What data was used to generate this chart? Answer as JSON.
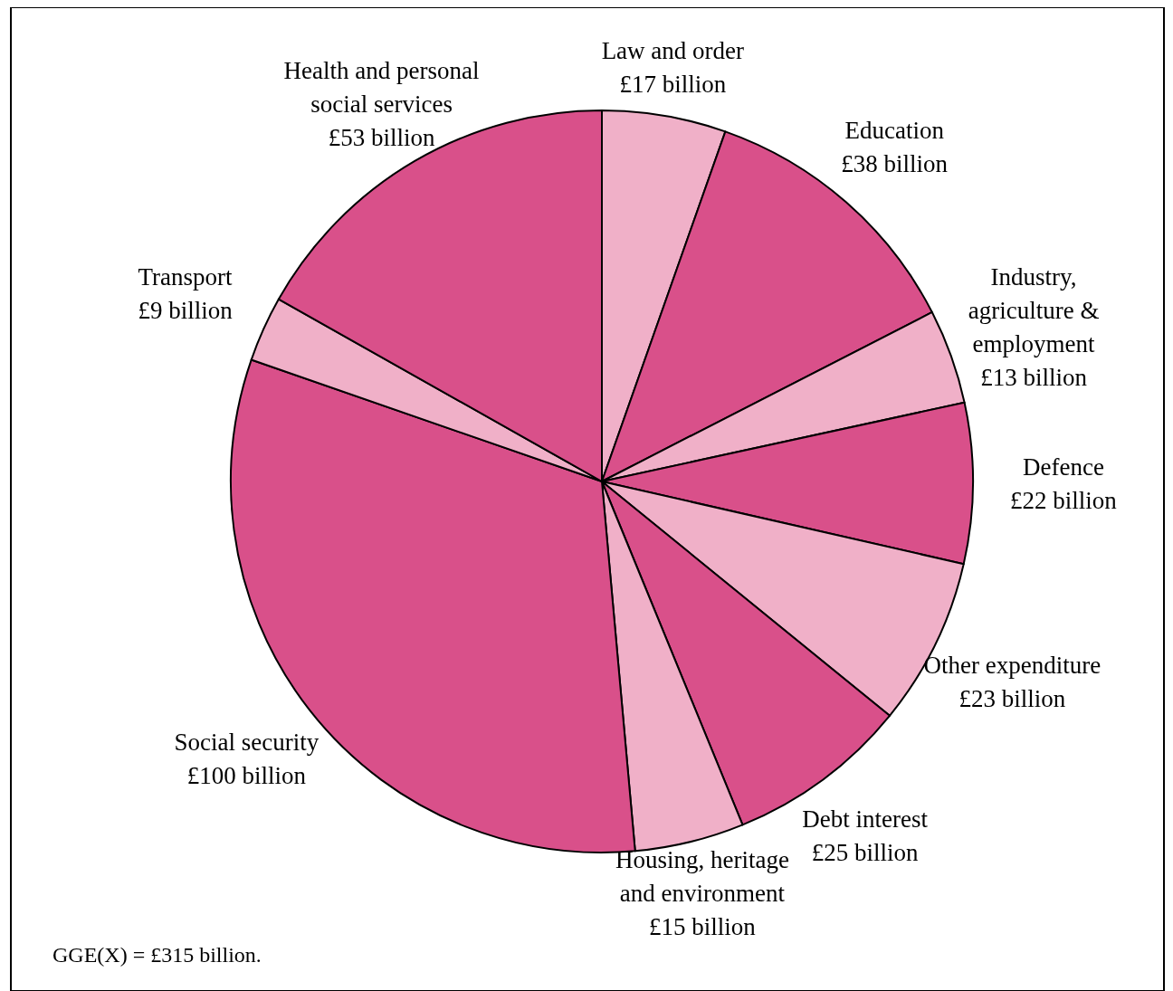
{
  "chart_data": {
    "type": "pie",
    "categories": [
      "Law and order",
      "Education",
      "Industry, agriculture & employment",
      "Defence",
      "Other expenditure",
      "Debt interest",
      "Housing, heritage and environment",
      "Social security",
      "Transport",
      "Health and personal social services"
    ],
    "values": [
      17,
      38,
      13,
      22,
      23,
      25,
      15,
      100,
      9,
      53
    ],
    "value_labels": [
      "£17 billion",
      "£38 billion",
      "£13 billion",
      "£22 billion",
      "£23 billion",
      "£25 billion",
      "£15 billion",
      "£100 billion",
      "£9 billion",
      "£53 billion"
    ],
    "colors": [
      "#f0b0c8",
      "#d9508a",
      "#f0b0c8",
      "#d9508a",
      "#f0b0c8",
      "#d9508a",
      "#f0b0c8",
      "#d9508a",
      "#f0b0c8",
      "#d9508a"
    ],
    "annotations": [
      "GGE(X) = £315 billion."
    ]
  }
}
